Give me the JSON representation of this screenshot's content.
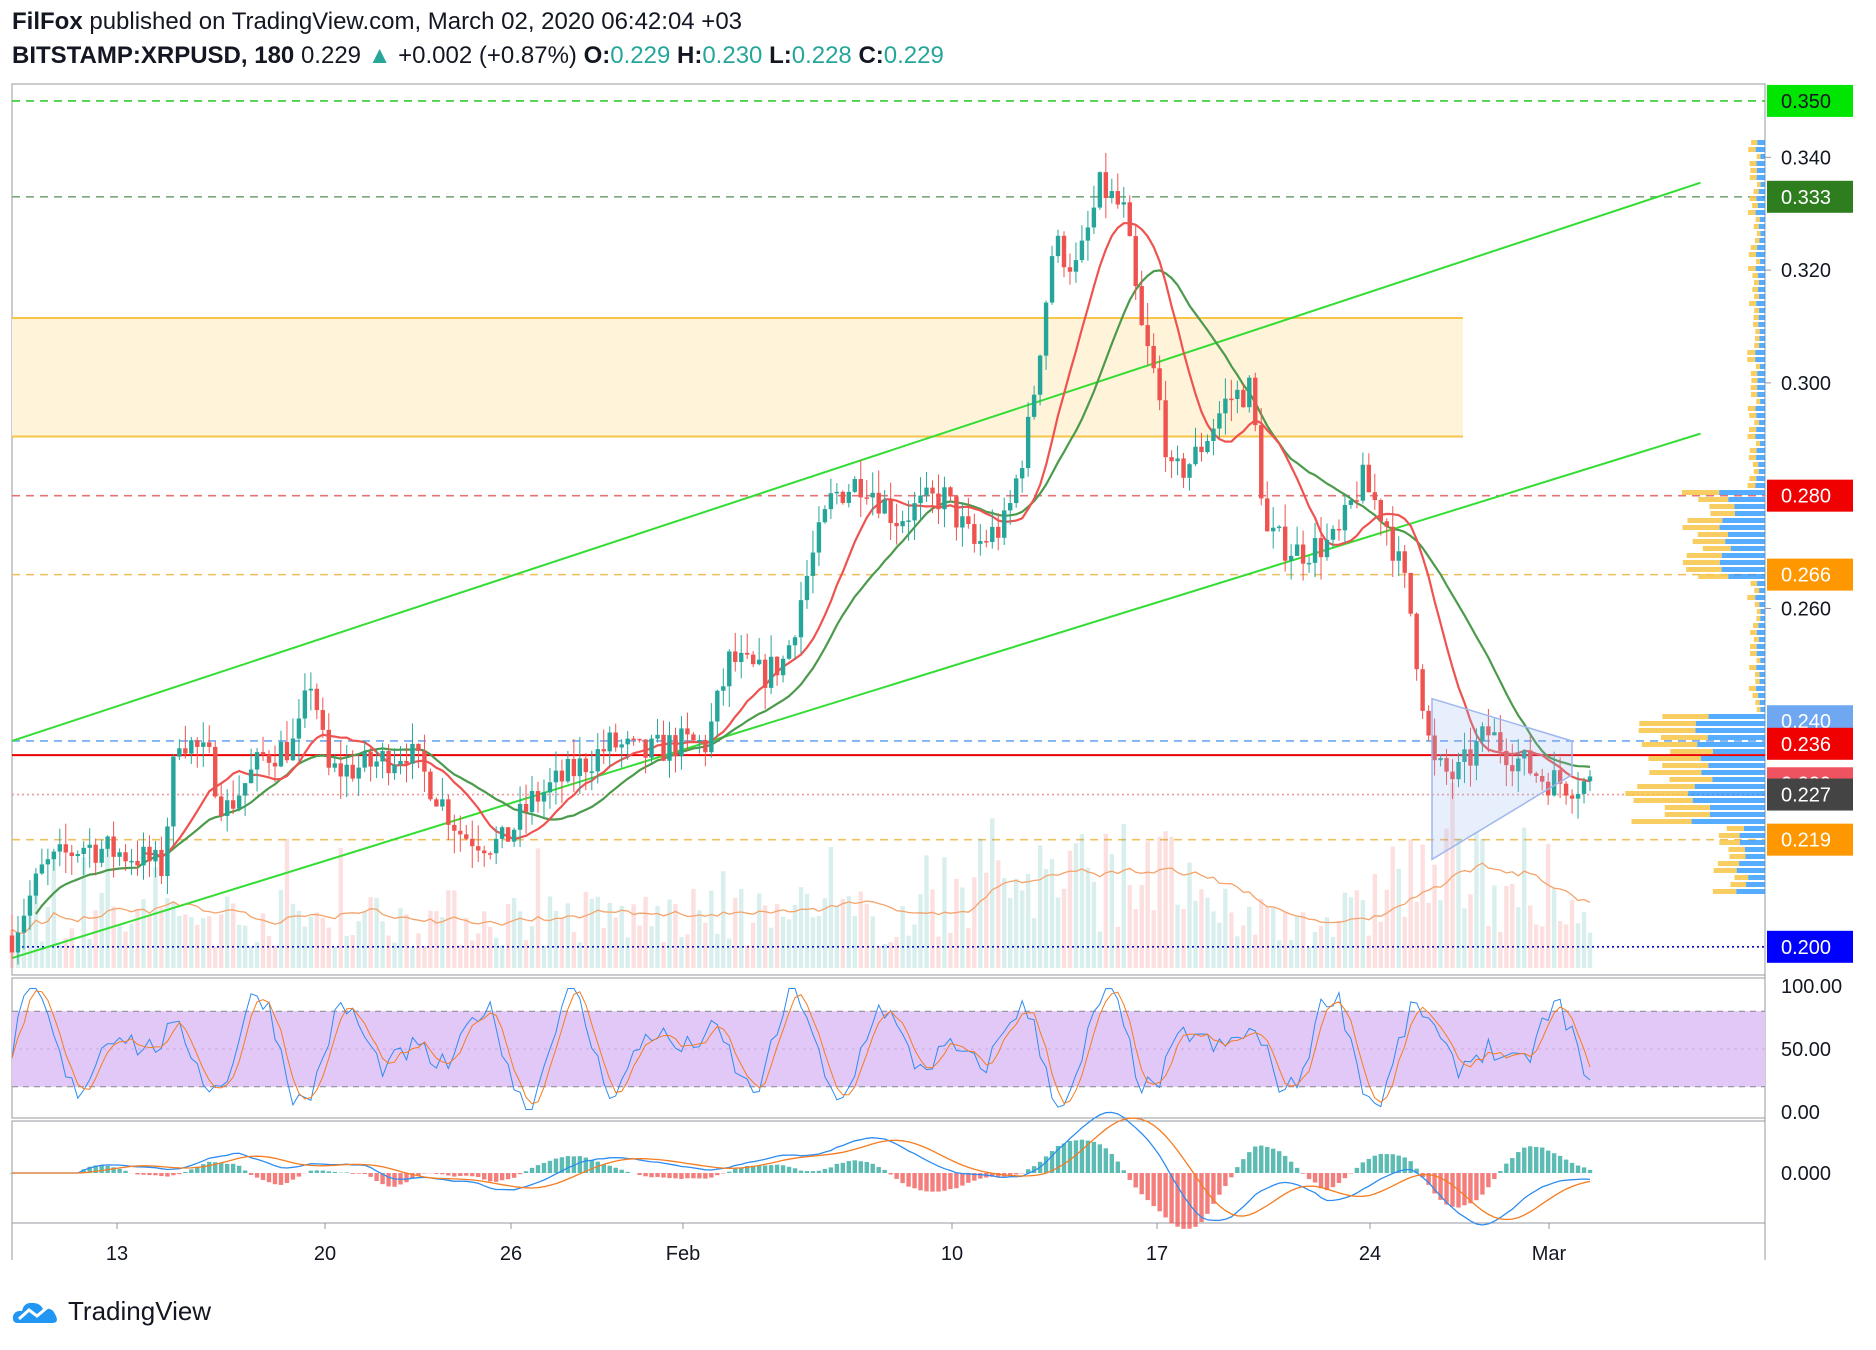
{
  "header": {
    "author": "FilFox",
    "published_text": "published on TradingView.com, March 02, 2020 06:42:04 +03",
    "symbol": "BITSTAMP:XRPUSD, 180",
    "last": "0.229",
    "arrow": "▲",
    "change": "+0.002 (+0.87%)",
    "open_label": "O:",
    "open": "0.229",
    "high_label": "H:",
    "high": "0.230",
    "low_label": "L:",
    "low": "0.228",
    "close_label": "C:",
    "close": "0.229"
  },
  "footer": {
    "brand": "TradingView",
    "logo_icon": "tradingview-cloud-icon"
  },
  "colors": {
    "up": "#26a69a",
    "down": "#ef5350",
    "channel": "#33dd33",
    "resistance_zone": "#fff3d9",
    "zone_line": "#f7c548",
    "ma_slow": "#4c9a4c",
    "ma_fast": "#ef5350",
    "stoch_band": "#e2c8f7",
    "vol_ma": "#f5a36b",
    "macd_line": "#2e8cf0",
    "signal_line": "#f57c20"
  },
  "chart_data": {
    "type": "candlestick",
    "price_axis": {
      "min": 0.195,
      "max": 0.353,
      "ticks": [
        "0.340",
        "0.320",
        "0.300",
        "0.260"
      ]
    },
    "time_axis_labels": [
      "13",
      "20",
      "26",
      "Feb",
      "10",
      "17",
      "24",
      "Mar"
    ],
    "price_tags": [
      {
        "value": 0.35,
        "label": "0.350",
        "color": "#00e600",
        "text_color": "#131722"
      },
      {
        "value": 0.333,
        "label": "0.333",
        "color": "#2e7d1e",
        "text_color": "#ffffff"
      },
      {
        "value": 0.28,
        "label": "0.280",
        "color": "#f00000",
        "text_color": "#ffffff"
      },
      {
        "value": 0.266,
        "label": "0.266",
        "color": "#ff9800",
        "text_color": "#ffffff"
      },
      {
        "value": 0.24,
        "label": "0.240",
        "color": "#6fa8f0",
        "text_color": "#ffffff"
      },
      {
        "value": 0.236,
        "label": "0.236",
        "color": "#f00000",
        "text_color": "#ffffff"
      },
      {
        "value": 0.229,
        "label": "0.229",
        "color": "#ef5360",
        "text_color": "#ffffff"
      },
      {
        "value": 0.227,
        "label": "0.227",
        "color": "#444444",
        "text_color": "#ffffff"
      },
      {
        "value": 0.219,
        "label": "0.219",
        "color": "#ff9800",
        "text_color": "#ffffff"
      },
      {
        "value": 0.2,
        "label": "0.200",
        "color": "#0000ff",
        "text_color": "#ffffff"
      }
    ],
    "levels": [
      {
        "value": 0.35,
        "style": "dashed",
        "color": "#33cc33"
      },
      {
        "value": 0.333,
        "style": "dashed",
        "color": "#7da77d"
      },
      {
        "value": 0.28,
        "style": "dashed",
        "color": "#e57373"
      },
      {
        "value": 0.266,
        "style": "dashed",
        "color": "#f0c060"
      },
      {
        "value": 0.2365,
        "style": "dashed",
        "color": "#6fa8f0"
      },
      {
        "value": 0.234,
        "style": "solid",
        "color": "#ee0000"
      },
      {
        "value": 0.227,
        "style": "dotted",
        "color": "#ef9a9a"
      },
      {
        "value": 0.219,
        "style": "dashed",
        "color": "#f0c060"
      },
      {
        "value": 0.2,
        "style": "dotted",
        "color": "#0000cc"
      }
    ],
    "resistance_zone": {
      "from": 0.2905,
      "to": 0.3115
    },
    "channel": {
      "upper": {
        "x0": 0,
        "y0": 0.2365,
        "x1": 1.0,
        "y1": 0.3355
      },
      "lower": {
        "x0": 0,
        "y0": 0.198,
        "x1": 1.0,
        "y1": 0.291
      }
    },
    "triangle": [
      [
        0.895,
        0.244
      ],
      [
        1.0,
        0.2365
      ],
      [
        0.895,
        0.2155
      ],
      [
        1.0,
        0.2305
      ]
    ],
    "close_path": [
      [
        0.0,
        0.202
      ],
      [
        0.02,
        0.214
      ],
      [
        0.045,
        0.218
      ],
      [
        0.08,
        0.216
      ],
      [
        0.095,
        0.214
      ],
      [
        0.105,
        0.238
      ],
      [
        0.125,
        0.233
      ],
      [
        0.135,
        0.224
      ],
      [
        0.16,
        0.234
      ],
      [
        0.18,
        0.236
      ],
      [
        0.19,
        0.248
      ],
      [
        0.2,
        0.231
      ],
      [
        0.225,
        0.232
      ],
      [
        0.25,
        0.235
      ],
      [
        0.265,
        0.229
      ],
      [
        0.285,
        0.22
      ],
      [
        0.31,
        0.218
      ],
      [
        0.33,
        0.226
      ],
      [
        0.35,
        0.23
      ],
      [
        0.38,
        0.236
      ],
      [
        0.4,
        0.234
      ],
      [
        0.42,
        0.236
      ],
      [
        0.44,
        0.236
      ],
      [
        0.455,
        0.251
      ],
      [
        0.475,
        0.248
      ],
      [
        0.49,
        0.251
      ],
      [
        0.505,
        0.267
      ],
      [
        0.52,
        0.28
      ],
      [
        0.54,
        0.283
      ],
      [
        0.56,
        0.276
      ],
      [
        0.59,
        0.28
      ],
      [
        0.61,
        0.271
      ],
      [
        0.63,
        0.275
      ],
      [
        0.645,
        0.293
      ],
      [
        0.66,
        0.325
      ],
      [
        0.675,
        0.32
      ],
      [
        0.69,
        0.335
      ],
      [
        0.705,
        0.33
      ],
      [
        0.715,
        0.31
      ],
      [
        0.725,
        0.3
      ],
      [
        0.735,
        0.283
      ],
      [
        0.75,
        0.287
      ],
      [
        0.77,
        0.297
      ],
      [
        0.785,
        0.299
      ],
      [
        0.795,
        0.273
      ],
      [
        0.815,
        0.27
      ],
      [
        0.84,
        0.272
      ],
      [
        0.855,
        0.283
      ],
      [
        0.87,
        0.276
      ],
      [
        0.885,
        0.262
      ],
      [
        0.9,
        0.232
      ],
      [
        0.915,
        0.23
      ],
      [
        0.935,
        0.238
      ],
      [
        0.955,
        0.233
      ],
      [
        0.97,
        0.23
      ],
      [
        0.985,
        0.229
      ],
      [
        1.0,
        0.229
      ]
    ],
    "stoch_axis": {
      "labels": [
        "100.00",
        "50.00",
        "0.00"
      ],
      "band": [
        20,
        80
      ]
    },
    "macd_axis": {
      "labels": [
        "0.000"
      ]
    }
  }
}
